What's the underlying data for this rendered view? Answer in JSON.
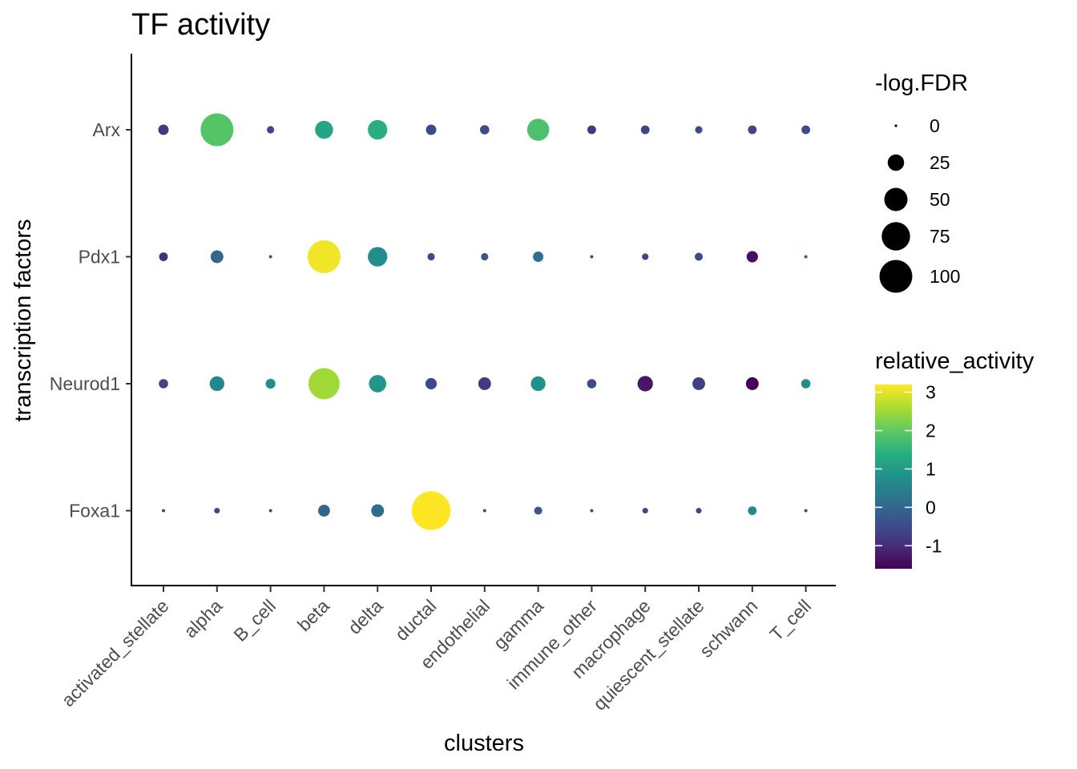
{
  "chart_data": {
    "type": "scatter",
    "title": "TF activity",
    "xlabel": "clusters",
    "ylabel": "transcription factors",
    "categories": [
      "activated_stellate",
      "alpha",
      "B_cell",
      "beta",
      "delta",
      "ductal",
      "endothelial",
      "gamma",
      "immune_other",
      "macrophage",
      "quiescent_stellate",
      "schwann",
      "T_cell"
    ],
    "tfs": [
      "Arx",
      "Pdx1",
      "Neurod1",
      "Foxa1"
    ],
    "series": [
      {
        "name": "Arx",
        "neglog_fdr": [
          10,
          100,
          5,
          30,
          35,
          10,
          8,
          45,
          7,
          7,
          5,
          7,
          7
        ],
        "relative_activity": [
          -0.8,
          1.9,
          -0.6,
          1.2,
          1.4,
          -0.5,
          -0.5,
          1.8,
          -0.8,
          -0.6,
          -0.5,
          -0.6,
          -0.5
        ]
      },
      {
        "name": "Pdx1",
        "neglog_fdr": [
          7,
          15,
          1,
          100,
          35,
          5,
          5,
          10,
          1,
          4,
          6,
          12,
          1
        ],
        "relative_activity": [
          -1.0,
          0.0,
          -0.3,
          3.1,
          0.7,
          -0.5,
          -0.3,
          0.2,
          -0.5,
          -0.6,
          -0.5,
          -1.4,
          -0.1
        ]
      },
      {
        "name": "Neurod1",
        "neglog_fdr": [
          8,
          20,
          9,
          90,
          28,
          12,
          15,
          20,
          8,
          22,
          15,
          15,
          8
        ],
        "relative_activity": [
          -0.6,
          0.6,
          0.7,
          2.5,
          0.9,
          -0.5,
          -0.8,
          0.8,
          -0.5,
          -1.3,
          -0.7,
          -1.6,
          0.7
        ]
      },
      {
        "name": "Foxa1",
        "neglog_fdr": [
          1,
          3,
          1,
          13,
          15,
          140,
          1,
          6,
          1,
          3,
          3,
          7,
          1
        ],
        "relative_activity": [
          -0.5,
          -0.6,
          -0.5,
          0.0,
          0.1,
          3.2,
          -0.5,
          -0.3,
          -0.5,
          -0.6,
          -0.5,
          0.6,
          -0.3
        ]
      }
    ],
    "size_legend": {
      "title": "-log.FDR",
      "values": [
        0,
        25,
        50,
        75,
        100
      ],
      "labels": [
        "0",
        "25",
        "50",
        "75",
        "100"
      ]
    },
    "color_legend": {
      "title": "relative_activity",
      "ticks": [
        3,
        2,
        1,
        0,
        -1
      ],
      "labels": [
        "3",
        "2",
        "1",
        "0",
        "-1"
      ],
      "range": [
        -1.6,
        3.2
      ],
      "colormap": "viridis"
    }
  }
}
